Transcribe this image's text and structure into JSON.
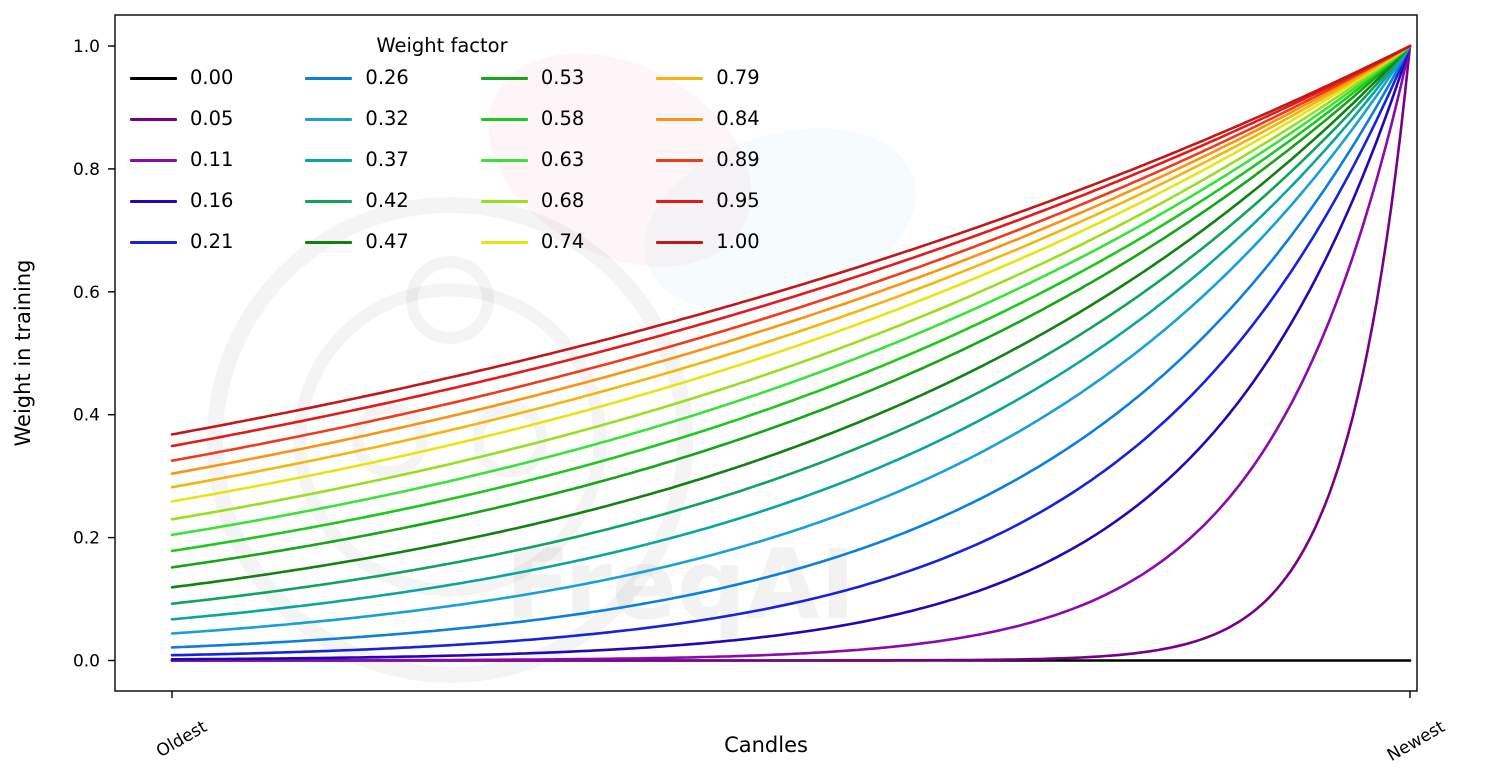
{
  "figure": {
    "background": "#ffffff",
    "watermark_text": "FreqAI"
  },
  "chart_data": {
    "type": "line",
    "title": "",
    "legend_title": "Weight factor",
    "legend_position": "upper left",
    "legend_columns": 4,
    "xlabel": "Candles",
    "ylabel": "Weight in training",
    "x_tick_labels": [
      "Oldest",
      "Newest"
    ],
    "x_tick_rotation_deg": 30,
    "y_ticks": [
      0.0,
      0.2,
      0.4,
      0.6,
      0.8,
      1.0
    ],
    "y_tick_labels": [
      "0.0",
      "0.2",
      "0.4",
      "0.6",
      "0.8",
      "1.0"
    ],
    "x_range_normalized": [
      0,
      1
    ],
    "ylim": [
      -0.05,
      1.05
    ],
    "grid": false,
    "formula": "weight(x) = exp((x - 1) / weight_factor) for weight_factor > 0; weight_factor = 0 keeps weight at 0 except the newest candle; all curves converge to 1.0 at Newest",
    "endpoint_values_at_oldest": [
      0.0,
      0.0,
      0.0001,
      0.002,
      0.009,
      0.021,
      0.044,
      0.067,
      0.092,
      0.119,
      0.152,
      0.178,
      0.204,
      0.23,
      0.259,
      0.282,
      0.304,
      0.325,
      0.349,
      0.368
    ],
    "series": [
      {
        "label": "0.00",
        "weight_factor": 0.0,
        "color": "#000000"
      },
      {
        "label": "0.05",
        "weight_factor": 0.05,
        "color": "#780089"
      },
      {
        "label": "0.11",
        "weight_factor": 0.11,
        "color": "#8a0bab"
      },
      {
        "label": "0.16",
        "weight_factor": 0.16,
        "color": "#2008b5"
      },
      {
        "label": "0.21",
        "weight_factor": 0.21,
        "color": "#1523dc"
      },
      {
        "label": "0.26",
        "weight_factor": 0.26,
        "color": "#0c7fdd"
      },
      {
        "label": "0.32",
        "weight_factor": 0.32,
        "color": "#19a0d5"
      },
      {
        "label": "0.37",
        "weight_factor": 0.37,
        "color": "#0aa69c"
      },
      {
        "label": "0.42",
        "weight_factor": 0.42,
        "color": "#10a35a"
      },
      {
        "label": "0.47",
        "weight_factor": 0.47,
        "color": "#128012"
      },
      {
        "label": "0.53",
        "weight_factor": 0.53,
        "color": "#17a517"
      },
      {
        "label": "0.58",
        "weight_factor": 0.58,
        "color": "#1ec81e"
      },
      {
        "label": "0.63",
        "weight_factor": 0.63,
        "color": "#3ae23a"
      },
      {
        "label": "0.68",
        "weight_factor": 0.68,
        "color": "#9ade1f"
      },
      {
        "label": "0.74",
        "weight_factor": 0.74,
        "color": "#e8e412"
      },
      {
        "label": "0.79",
        "weight_factor": 0.79,
        "color": "#f6b40e"
      },
      {
        "label": "0.84",
        "weight_factor": 0.84,
        "color": "#fb9312"
      },
      {
        "label": "0.89",
        "weight_factor": 0.89,
        "color": "#ef3b1c"
      },
      {
        "label": "0.95",
        "weight_factor": 0.95,
        "color": "#e41a1a"
      },
      {
        "label": "1.00",
        "weight_factor": 1.0,
        "color": "#c21818"
      }
    ]
  }
}
